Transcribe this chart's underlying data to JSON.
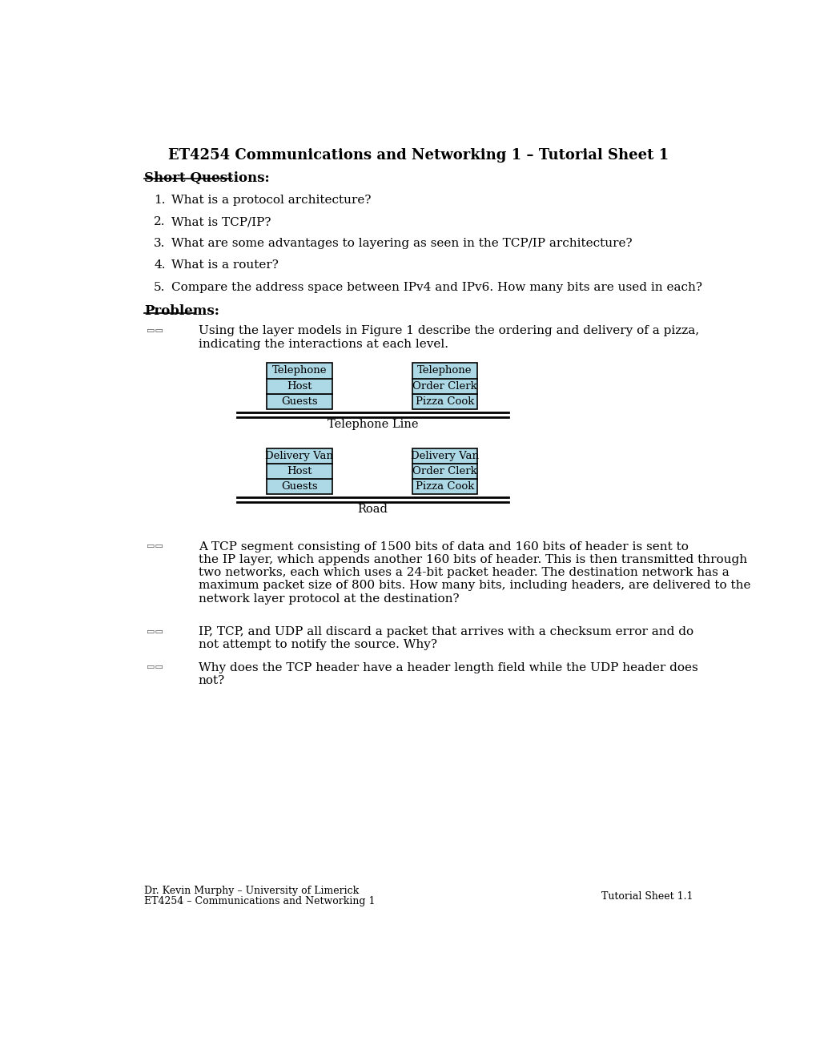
{
  "title": "ET4254 Communications and Networking 1 – Tutorial Sheet 1",
  "bg_color": "#ffffff",
  "text_color": "#000000",
  "box_fill_color": "#add8e6",
  "box_edge_color": "#000000",
  "short_questions_header": "Short Questions:",
  "short_questions": [
    "What is a protocol architecture?",
    "What is TCP/IP?",
    "What are some advantages to layering as seen in the TCP/IP architecture?",
    "What is a router?",
    "Compare the address space between IPv4 and IPv6. How many bits are used in each?"
  ],
  "problems_header": "Problems:",
  "diagram1_left_boxes": [
    "Guests",
    "Host",
    "Telephone"
  ],
  "diagram1_right_boxes": [
    "Pizza Cook",
    "Order Clerk",
    "Telephone"
  ],
  "diagram1_label": "Telephone Line",
  "diagram2_left_boxes": [
    "Guests",
    "Host",
    "Delivery Van"
  ],
  "diagram2_right_boxes": [
    "Pizza Cook",
    "Order Clerk",
    "Delivery Van"
  ],
  "diagram2_label": "Road",
  "problem1_text": "Using the layer models in Figure 1 describe the ordering and delivery of a pizza,\nindicating the interactions at each level.",
  "problem2_text": "A TCP segment consisting of 1500 bits of data and 160 bits of header is sent to\nthe IP layer, which appends another 160 bits of header. This is then transmitted through\ntwo networks, each which uses a 24-bit packet header. The destination network has a\nmaximum packet size of 800 bits. How many bits, including headers, are delivered to the\nnetwork layer protocol at the destination?",
  "problem3_text": "IP, TCP, and UDP all discard a packet that arrives with a checksum error and do\nnot attempt to notify the source. Why?",
  "problem4_text": "Why does the TCP header have a header length field while the UDP header does\nnot?",
  "footer_left1": "Dr. Kevin Murphy – University of Limerick",
  "footer_left2": "ET4254 – Communications and Networking 1",
  "footer_right": "Tutorial Sheet 1.1",
  "font_family": "DejaVu Serif"
}
